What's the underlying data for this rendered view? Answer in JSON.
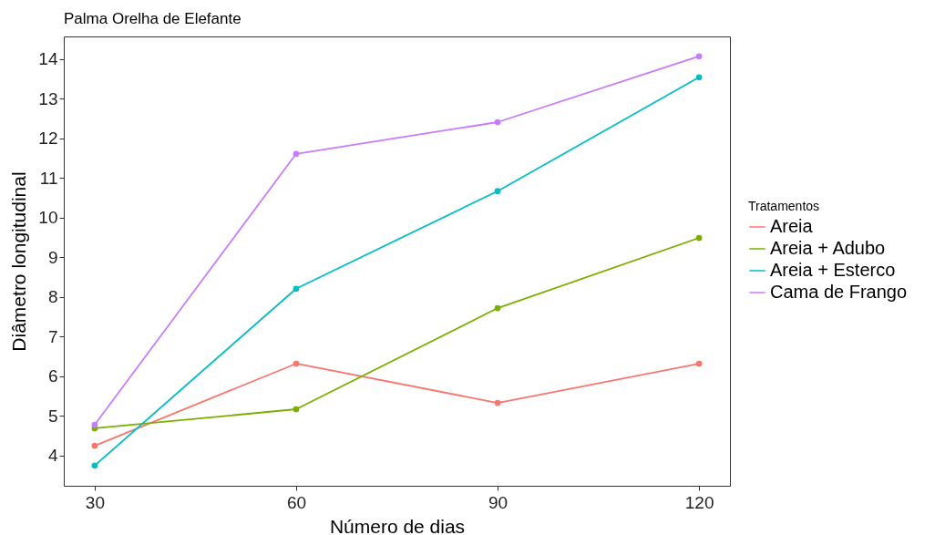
{
  "chart_data": {
    "type": "line",
    "title": "Palma Orelha de Elefante",
    "xlabel": "Número de dias",
    "ylabel": "Diâmetro longitudinal",
    "legend_title": "Tratamentos",
    "x": [
      30,
      60,
      90,
      120
    ],
    "series": [
      {
        "name": "Areia",
        "color": "#f8766d",
        "values": [
          4.25,
          6.32,
          5.33,
          6.32
        ]
      },
      {
        "name": "Areia + Adubo",
        "color": "#7cae00",
        "values": [
          4.69,
          5.17,
          7.72,
          9.49
        ]
      },
      {
        "name": "Areia + Esterco",
        "color": "#00bfc4",
        "values": [
          3.75,
          8.21,
          10.67,
          13.54
        ]
      },
      {
        "name": "Cama de Frango",
        "color": "#c77cff",
        "values": [
          4.78,
          11.61,
          12.41,
          14.07
        ]
      }
    ],
    "xlim": [
      25.4,
      124.6
    ],
    "xticks": [
      30,
      60,
      90,
      120
    ],
    "ylim": [
      3.24,
      14.57
    ],
    "yticks": [
      4,
      5,
      6,
      7,
      8,
      9,
      10,
      11,
      12,
      13,
      14
    ],
    "grid": false,
    "legend": "right",
    "marker": "circle",
    "line_style": "solid"
  }
}
